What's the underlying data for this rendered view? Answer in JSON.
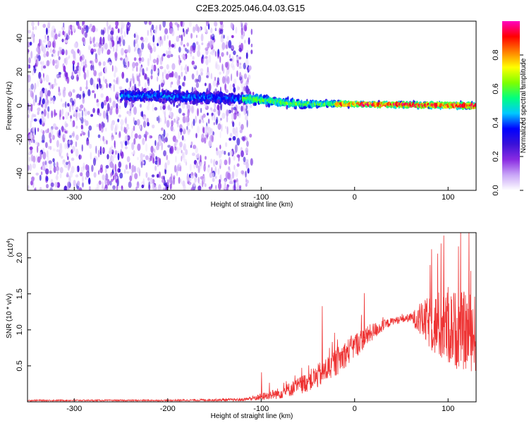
{
  "title": "C2E3.2025.046.04.03.G15",
  "chart_data": [
    {
      "type": "heatmap",
      "xlabel": "Height of straight line (km)",
      "ylabel": "Frequency (Hz)",
      "xlim": [
        -350,
        130
      ],
      "ylim": [
        -50,
        50
      ],
      "xticks": [
        -300,
        -200,
        -100,
        0,
        100
      ],
      "yticks": [
        -40,
        -20,
        0,
        20,
        40
      ],
      "colorbar": {
        "label": "Normalized spectral amplitude",
        "range": [
          0,
          1
        ],
        "ticks": [
          "0.0",
          "0.2",
          "0.4",
          "0.6",
          "0.8"
        ],
        "colors": [
          "#ffffff",
          "#c9a6f7",
          "#8a2be2",
          "#3a12d8",
          "#0000ff",
          "#00c8ff",
          "#00ff80",
          "#7fff00",
          "#ffff00",
          "#ff8000",
          "#ff0000",
          "#ff00c0"
        ]
      },
      "signal_band": {
        "description_points": [
          {
            "x": -230,
            "center": 6,
            "halfwidth": 6
          },
          {
            "x": -170,
            "center": 5,
            "halfwidth": 6
          },
          {
            "x": -110,
            "center": 4,
            "halfwidth": 5
          },
          {
            "x": -60,
            "center": 1,
            "halfwidth": 4
          },
          {
            "x": 0,
            "center": 1,
            "halfwidth": 2
          },
          {
            "x": 130,
            "center": 0,
            "halfwidth": 3
          }
        ],
        "noise_extent_x": [
          -350,
          -110
        ]
      }
    },
    {
      "type": "line",
      "xlabel": "Height of straight line (km)",
      "ylabel": "SNR (10 * v/v)",
      "yscale_label": "(x10",
      "yscale_exp": "4",
      "xlim": [
        -350,
        130
      ],
      "ylim": [
        0,
        2.35
      ],
      "xticks": [
        -300,
        -200,
        -100,
        0,
        100
      ],
      "yticks": [
        "0.5",
        "1.0",
        "1.5",
        "2.0"
      ],
      "color": "#ee3333",
      "envelope": {
        "x": [
          -350,
          -200,
          -120,
          -100,
          -80,
          -60,
          -40,
          -20,
          0,
          20,
          40,
          60,
          75,
          90,
          110,
          130
        ],
        "mean": [
          0.02,
          0.02,
          0.03,
          0.07,
          0.12,
          0.22,
          0.35,
          0.55,
          0.78,
          0.98,
          1.12,
          1.17,
          1.12,
          1.05,
          1.0,
          0.95
        ],
        "noise": [
          0.01,
          0.01,
          0.02,
          0.05,
          0.08,
          0.12,
          0.17,
          0.2,
          0.18,
          0.12,
          0.05,
          0.06,
          0.3,
          0.5,
          0.55,
          0.55
        ]
      },
      "spikes": [
        {
          "x": -100,
          "y": 0.41
        },
        {
          "x": -35,
          "y": 1.33
        },
        {
          "x": 10,
          "y": 1.51
        },
        {
          "x": 82,
          "y": 2.12
        },
        {
          "x": 95,
          "y": 2.31
        },
        {
          "x": 122,
          "y": 2.35
        }
      ]
    }
  ]
}
